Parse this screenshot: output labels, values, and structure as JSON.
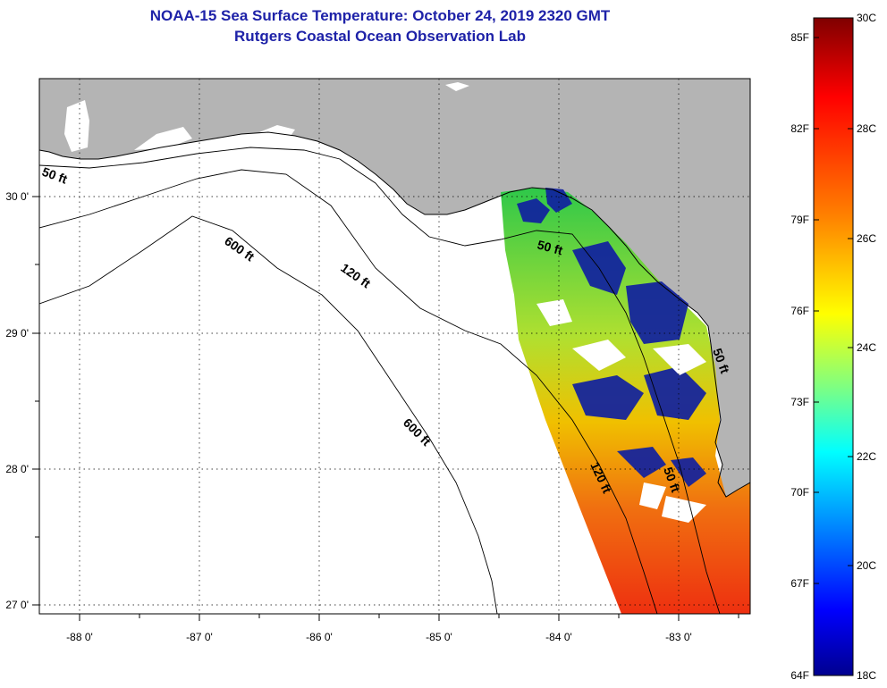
{
  "title": {
    "line1": "NOAA-15 Sea Surface Temperature:  October 24, 2019 2320 GMT",
    "line2": "Rutgers Coastal Ocean Observation Lab"
  },
  "map": {
    "lon_labels": [
      "-88 0'",
      "-87 0'",
      "-86 0'",
      "-85 0'",
      "-84 0'",
      "-83 0'"
    ],
    "lat_labels": [
      "30 0'",
      "29 0'",
      "28 0'",
      "27 0'"
    ],
    "depth_labels": [
      "50 ft",
      "600 ft",
      "120 ft",
      "600 ft",
      "50 ft",
      "120 ft",
      "50 ft",
      "50 ft"
    ],
    "colors": {
      "land": "#b4b4b4",
      "water": "#ffffff",
      "coast": "#000000"
    }
  },
  "colorbar": {
    "f_labels": [
      "85F",
      "82F",
      "79F",
      "76F",
      "73F",
      "70F",
      "67F",
      "64F"
    ],
    "c_labels": [
      "30C",
      "28C",
      "26C",
      "24C",
      "22C",
      "20C",
      "18C"
    ],
    "gradient": [
      "#7f0000",
      "#ff0000",
      "#ff8000",
      "#ffff00",
      "#80ff80",
      "#00ffff",
      "#0080ff",
      "#0000ff",
      "#00008f"
    ]
  }
}
